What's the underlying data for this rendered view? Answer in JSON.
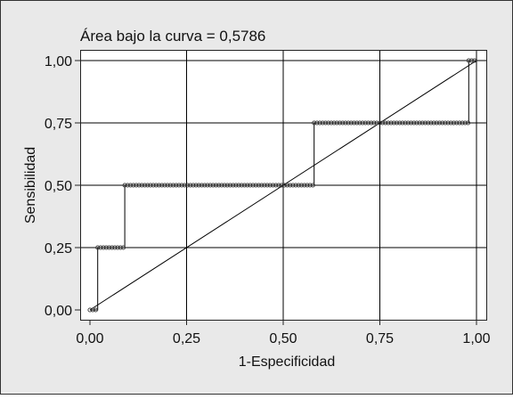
{
  "colors": {
    "background": "#e9e9e9",
    "plot_area": "#ffffff",
    "line": "#000000",
    "marker": "#333333"
  },
  "chart_data": {
    "type": "line",
    "annotation": "Área bajo la curva = 0,5786",
    "xlabel": "1-Especificidad",
    "ylabel": "Sensibilidad",
    "xlim": [
      0,
      1
    ],
    "ylim": [
      0,
      1
    ],
    "x_ticks": [
      "0,00",
      "0,25",
      "0,50",
      "0,75",
      "1,00"
    ],
    "y_ticks": [
      "0,00",
      "0,25",
      "0,50",
      "0,75",
      "1,00"
    ],
    "grid": true,
    "series": [
      {
        "style": "step-with-markers",
        "x": [
          0.0,
          0.02,
          0.02,
          0.09,
          0.09,
          0.58,
          0.58,
          0.98,
          0.98,
          1.0
        ],
        "y": [
          0.0,
          0.0,
          0.25,
          0.25,
          0.5,
          0.5,
          0.75,
          0.75,
          1.0,
          1.0
        ]
      },
      {
        "style": "reference-diagonal",
        "x": [
          0,
          1
        ],
        "y": [
          0,
          1
        ]
      }
    ]
  }
}
